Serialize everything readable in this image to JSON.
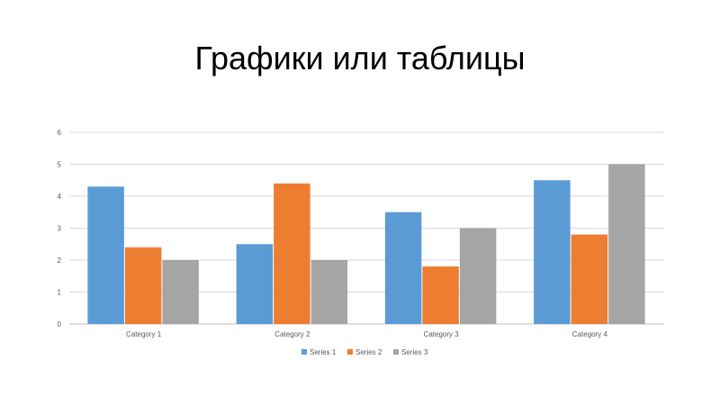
{
  "slide": {
    "title": "Графики или таблицы"
  },
  "chart_data": {
    "type": "bar",
    "categories": [
      "Category 1",
      "Category 2",
      "Category 3",
      "Category 4"
    ],
    "series": [
      {
        "name": "Series 1",
        "values": [
          4.3,
          2.5,
          3.5,
          4.5
        ],
        "color": "#5b9bd5"
      },
      {
        "name": "Series 2",
        "values": [
          2.4,
          4.4,
          1.8,
          2.8
        ],
        "color": "#ed7d31"
      },
      {
        "name": "Series 3",
        "values": [
          2.0,
          2.0,
          3.0,
          5.0
        ],
        "color": "#a5a5a5"
      }
    ],
    "yticks": [
      "0",
      "1",
      "2",
      "3",
      "4",
      "5",
      "6"
    ],
    "ylim": [
      0,
      6
    ],
    "grid": true,
    "legend": "bottom"
  }
}
